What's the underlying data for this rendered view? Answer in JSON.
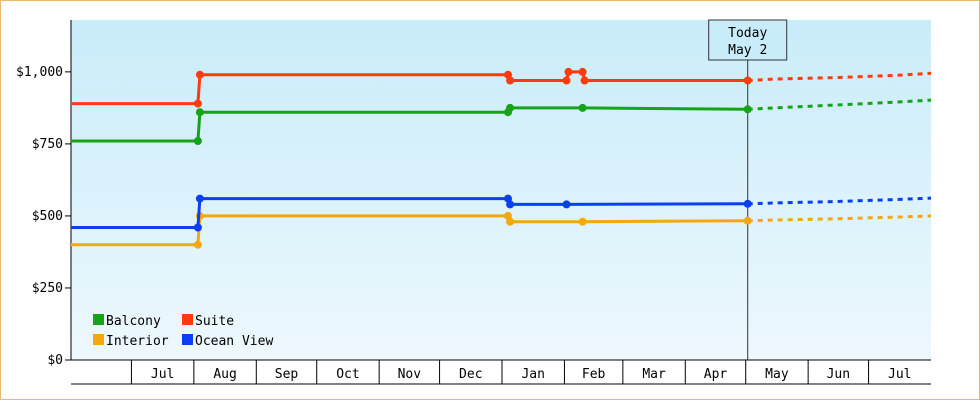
{
  "chart_data": {
    "type": "line",
    "step": true,
    "ylim": [
      0,
      1180
    ],
    "y_ticks": [
      {
        "value": 0,
        "label": "$0"
      },
      {
        "value": 250,
        "label": "$250"
      },
      {
        "value": 500,
        "label": "$500"
      },
      {
        "value": 750,
        "label": "$750"
      },
      {
        "value": 1000,
        "label": "$1,000"
      }
    ],
    "x_range": [
      "2023-06-01",
      "2024-08-01"
    ],
    "x_months": [
      {
        "label": "Jul",
        "start": "2023-07-01",
        "end": "2023-08-01"
      },
      {
        "label": "Aug",
        "start": "2023-08-01",
        "end": "2023-09-01"
      },
      {
        "label": "Sep",
        "start": "2023-09-01",
        "end": "2023-10-01"
      },
      {
        "label": "Oct",
        "start": "2023-10-01",
        "end": "2023-11-01"
      },
      {
        "label": "Nov",
        "start": "2023-11-01",
        "end": "2023-12-01"
      },
      {
        "label": "Dec",
        "start": "2023-12-01",
        "end": "2024-01-01"
      },
      {
        "label": "Jan",
        "start": "2024-01-01",
        "end": "2024-02-01"
      },
      {
        "label": "Feb",
        "start": "2024-02-01",
        "end": "2024-03-01"
      },
      {
        "label": "Mar",
        "start": "2024-03-01",
        "end": "2024-04-01"
      },
      {
        "label": "Apr",
        "start": "2024-04-01",
        "end": "2024-05-01"
      },
      {
        "label": "May",
        "start": "2024-05-01",
        "end": "2024-06-01"
      },
      {
        "label": "Jun",
        "start": "2024-06-01",
        "end": "2024-07-01"
      },
      {
        "label": "Jul",
        "start": "2024-07-01",
        "end": "2024-08-01"
      }
    ],
    "today": {
      "date": "2024-05-02",
      "line1": "Today",
      "line2": "May 2"
    },
    "legend_placement": "bottom-left",
    "series": [
      {
        "name": "Balcony",
        "color": "#17a317",
        "points": [
          [
            "2023-06-01",
            760
          ],
          [
            "2023-08-03",
            760
          ],
          [
            "2023-08-04",
            860
          ],
          [
            "2024-01-04",
            860
          ],
          [
            "2024-01-05",
            875
          ],
          [
            "2024-02-10",
            875
          ],
          [
            "2024-05-02",
            870
          ]
        ],
        "forecast": [
          [
            "2024-05-02",
            870
          ],
          [
            "2024-05-15",
            875
          ],
          [
            "2024-06-15",
            885
          ],
          [
            "2024-07-15",
            895
          ],
          [
            "2024-08-01",
            902
          ]
        ]
      },
      {
        "name": "Suite",
        "color": "#ff3a0f",
        "points": [
          [
            "2023-06-01",
            890
          ],
          [
            "2023-08-03",
            890
          ],
          [
            "2023-08-04",
            990
          ],
          [
            "2024-01-04",
            990
          ],
          [
            "2024-01-05",
            970
          ],
          [
            "2024-02-02",
            970
          ],
          [
            "2024-02-03",
            1000
          ],
          [
            "2024-02-10",
            1000
          ],
          [
            "2024-02-11",
            970
          ],
          [
            "2024-05-02",
            970
          ]
        ],
        "forecast": [
          [
            "2024-05-02",
            970
          ],
          [
            "2024-05-15",
            975
          ],
          [
            "2024-06-15",
            980
          ],
          [
            "2024-07-15",
            988
          ],
          [
            "2024-08-01",
            995
          ]
        ]
      },
      {
        "name": "Interior",
        "color": "#f5a70f",
        "points": [
          [
            "2023-06-01",
            400
          ],
          [
            "2023-08-03",
            400
          ],
          [
            "2023-08-04",
            500
          ],
          [
            "2024-01-04",
            500
          ],
          [
            "2024-01-05",
            480
          ],
          [
            "2024-02-10",
            480
          ],
          [
            "2024-05-02",
            483
          ]
        ],
        "forecast": [
          [
            "2024-05-02",
            483
          ],
          [
            "2024-05-15",
            486
          ],
          [
            "2024-06-15",
            490
          ],
          [
            "2024-07-15",
            496
          ],
          [
            "2024-08-01",
            500
          ]
        ]
      },
      {
        "name": "Ocean View",
        "color": "#0a3ff5",
        "points": [
          [
            "2023-06-01",
            460
          ],
          [
            "2023-08-03",
            460
          ],
          [
            "2023-08-04",
            560
          ],
          [
            "2024-01-04",
            560
          ],
          [
            "2024-01-05",
            540
          ],
          [
            "2024-02-02",
            540
          ],
          [
            "2024-05-02",
            542
          ]
        ],
        "forecast": [
          [
            "2024-05-02",
            542
          ],
          [
            "2024-05-15",
            545
          ],
          [
            "2024-06-15",
            550
          ],
          [
            "2024-07-15",
            557
          ],
          [
            "2024-08-01",
            562
          ]
        ]
      }
    ],
    "legend": [
      {
        "series": "Balcony"
      },
      {
        "series": "Suite"
      },
      {
        "series": "Interior"
      },
      {
        "series": "Ocean View"
      }
    ]
  },
  "colors": {
    "plot_gradient_top": "#c9ecfa",
    "plot_gradient_bottom": "#edf8fd",
    "frame_border": "#e8b774"
  }
}
